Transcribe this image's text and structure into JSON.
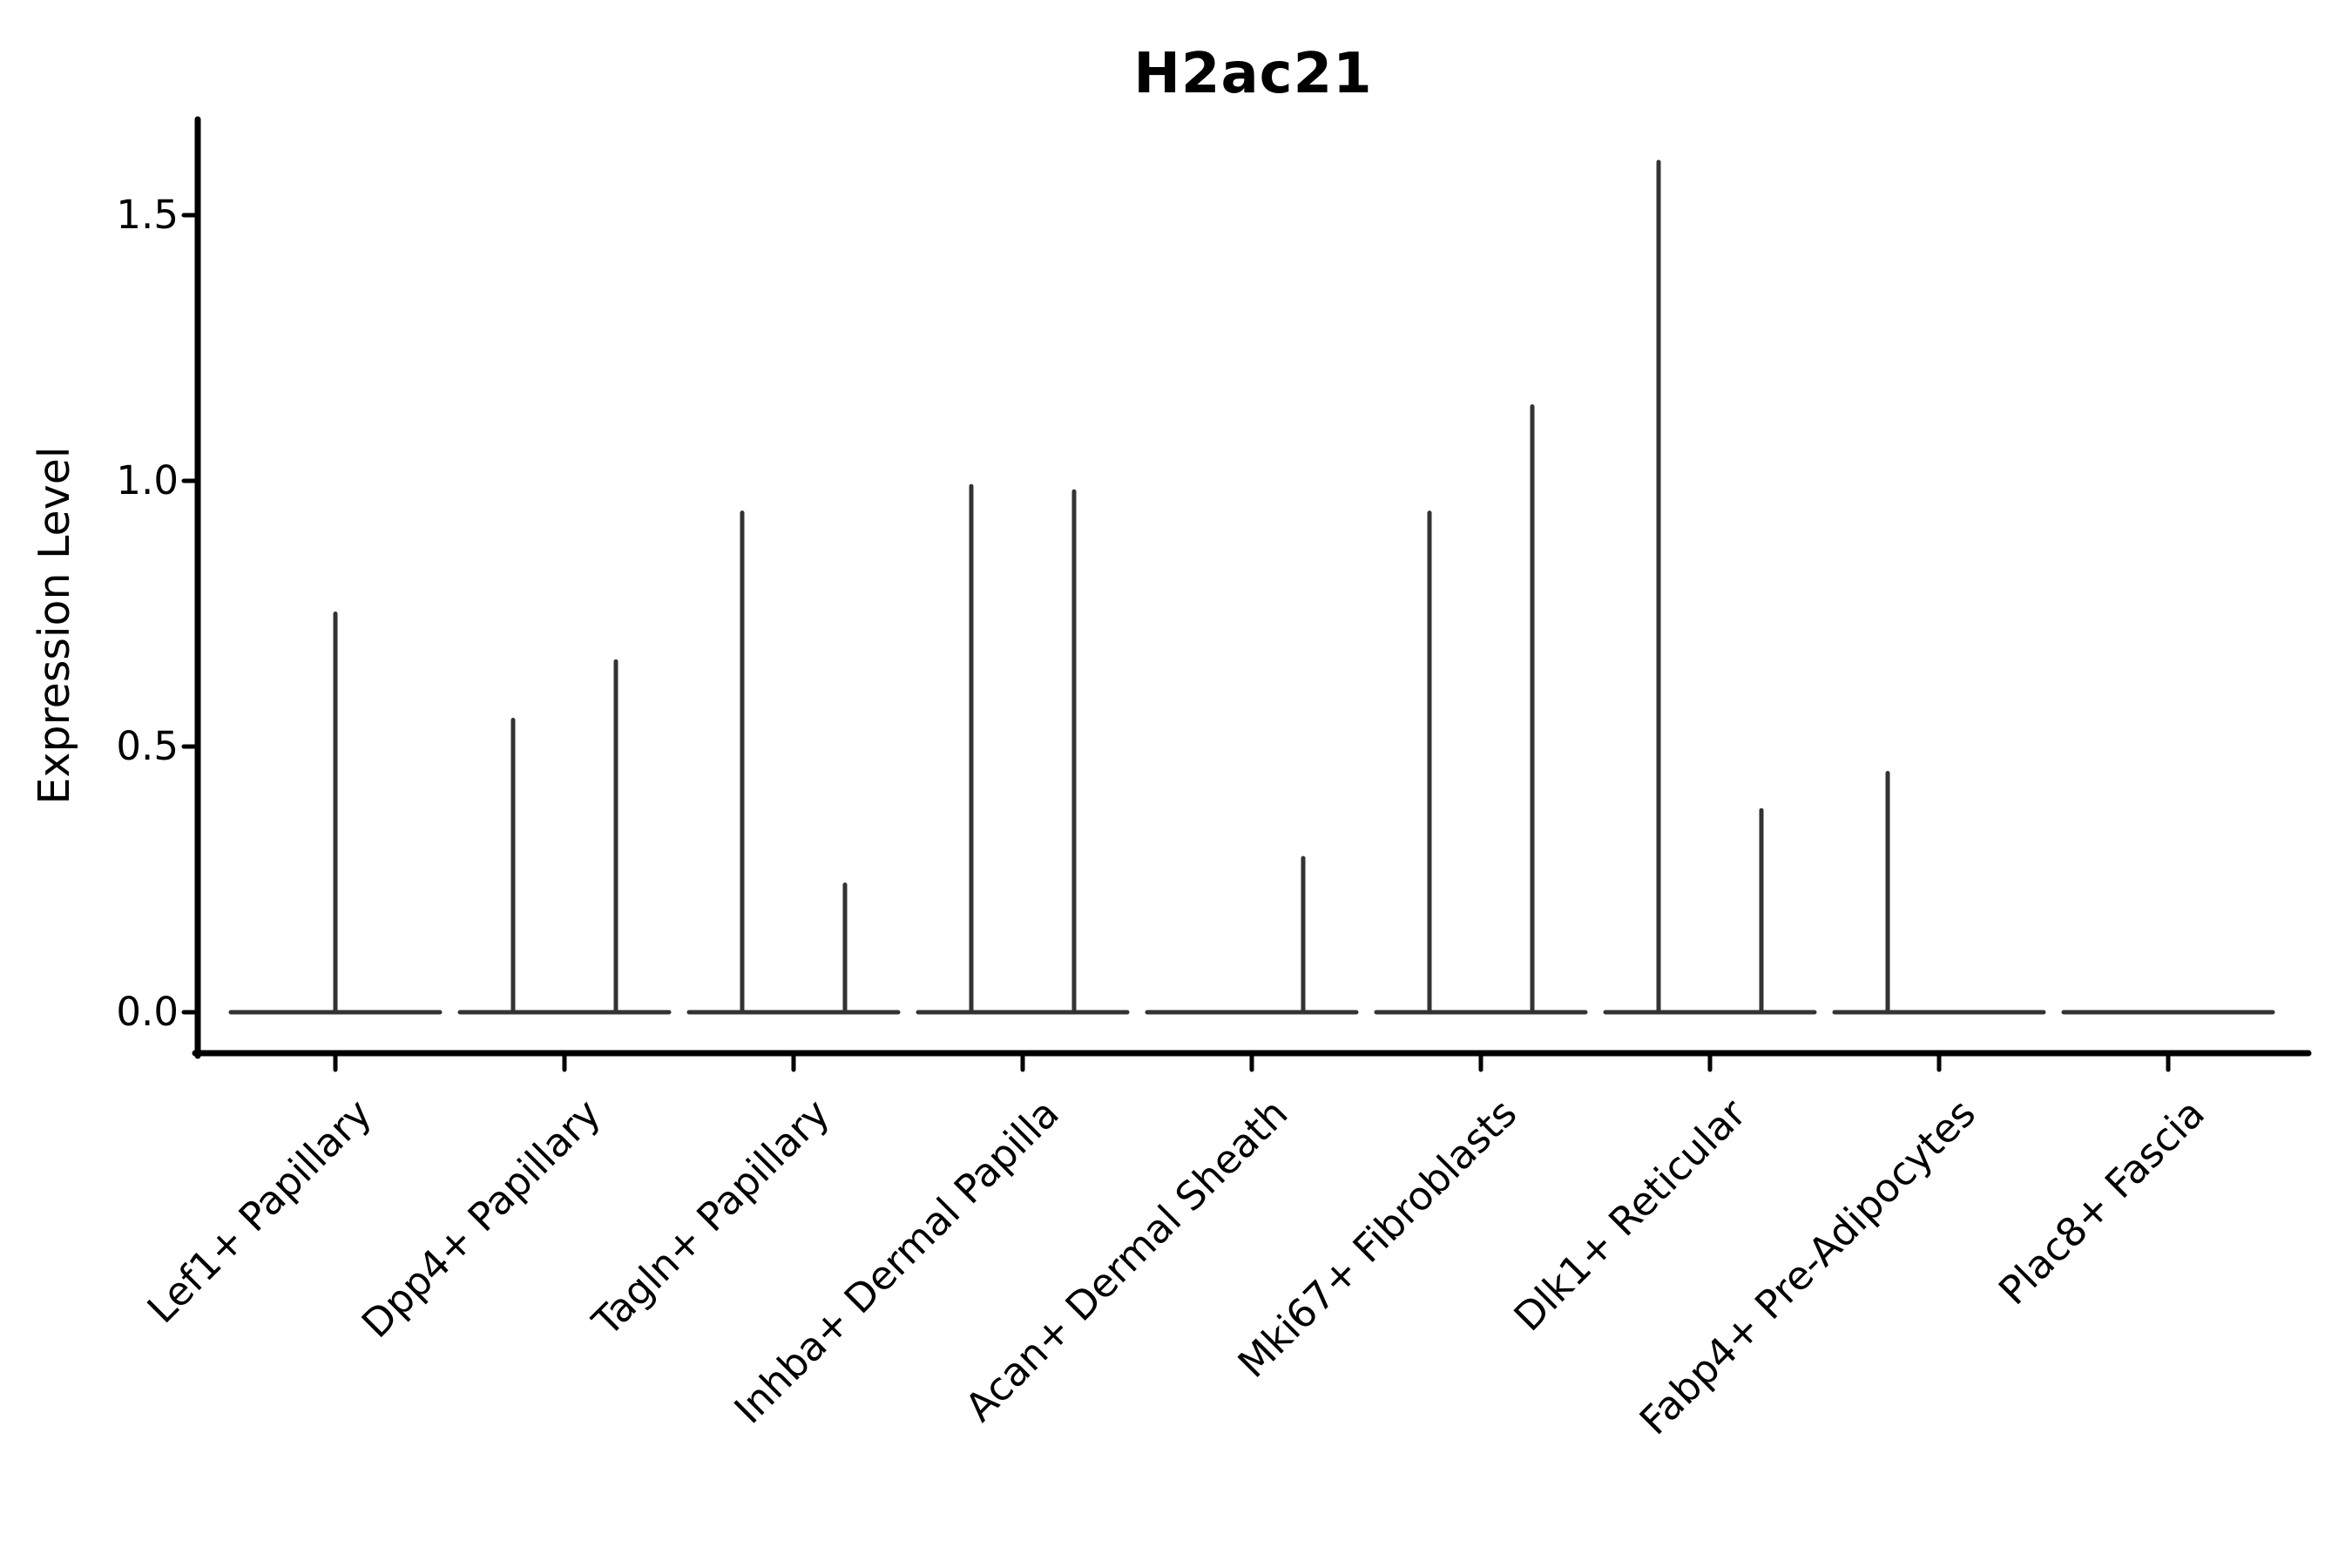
{
  "chart_data": {
    "type": "violin",
    "title": "H2ac21",
    "ylabel": "Expression Level",
    "xlabel": "",
    "y_ticks": [
      0.0,
      0.5,
      1.0,
      1.5
    ],
    "y_tick_labels": [
      "0.0",
      "0.5",
      "1.0",
      "1.5"
    ],
    "ylim": [
      -0.08,
      1.68
    ],
    "grid": false,
    "legend": "none",
    "categories": [
      "Lef1+ Papillary",
      "Dpp4+ Papillary",
      "Tagln+ Papillary",
      "Inhba+ Dermal Papilla",
      "Acan+ Dermal Sheath",
      "Mki67+ Fibroblasts",
      "Dlk1+ Reticular",
      "Fabp4+ Pre-Adipocytes",
      "Plac8+ Fascia"
    ],
    "groups": [
      {
        "label": "Lef1+ Papillary",
        "spikes": [
          {
            "position": "center",
            "max": 0.75
          }
        ]
      },
      {
        "label": "Dpp4+ Papillary",
        "spikes": [
          {
            "position": "left",
            "max": 0.55
          },
          {
            "position": "right",
            "max": 0.66
          }
        ]
      },
      {
        "label": "Tagln+ Papillary",
        "spikes": [
          {
            "position": "left",
            "max": 0.94
          },
          {
            "position": "right",
            "max": 0.24
          }
        ]
      },
      {
        "label": "Inhba+ Dermal Papilla",
        "spikes": [
          {
            "position": "left",
            "max": 0.99
          },
          {
            "position": "right",
            "max": 0.98
          }
        ]
      },
      {
        "label": "Acan+ Dermal Sheath",
        "spikes": [
          {
            "position": "right",
            "max": 0.29
          }
        ]
      },
      {
        "label": "Mki67+ Fibroblasts",
        "spikes": [
          {
            "position": "left",
            "max": 0.94
          },
          {
            "position": "right",
            "max": 1.14
          }
        ]
      },
      {
        "label": "Dlk1+ Reticular",
        "spikes": [
          {
            "position": "left",
            "max": 1.6
          },
          {
            "position": "right",
            "max": 0.38
          }
        ]
      },
      {
        "label": "Fabp4+ Pre-Adipocytes",
        "spikes": [
          {
            "position": "left",
            "max": 0.45
          }
        ]
      },
      {
        "label": "Plac8+ Fascia",
        "spikes": []
      }
    ],
    "colors": {
      "violin_line": "#333333",
      "axis": "#000000",
      "text": "#000000",
      "background": "#ffffff"
    }
  }
}
